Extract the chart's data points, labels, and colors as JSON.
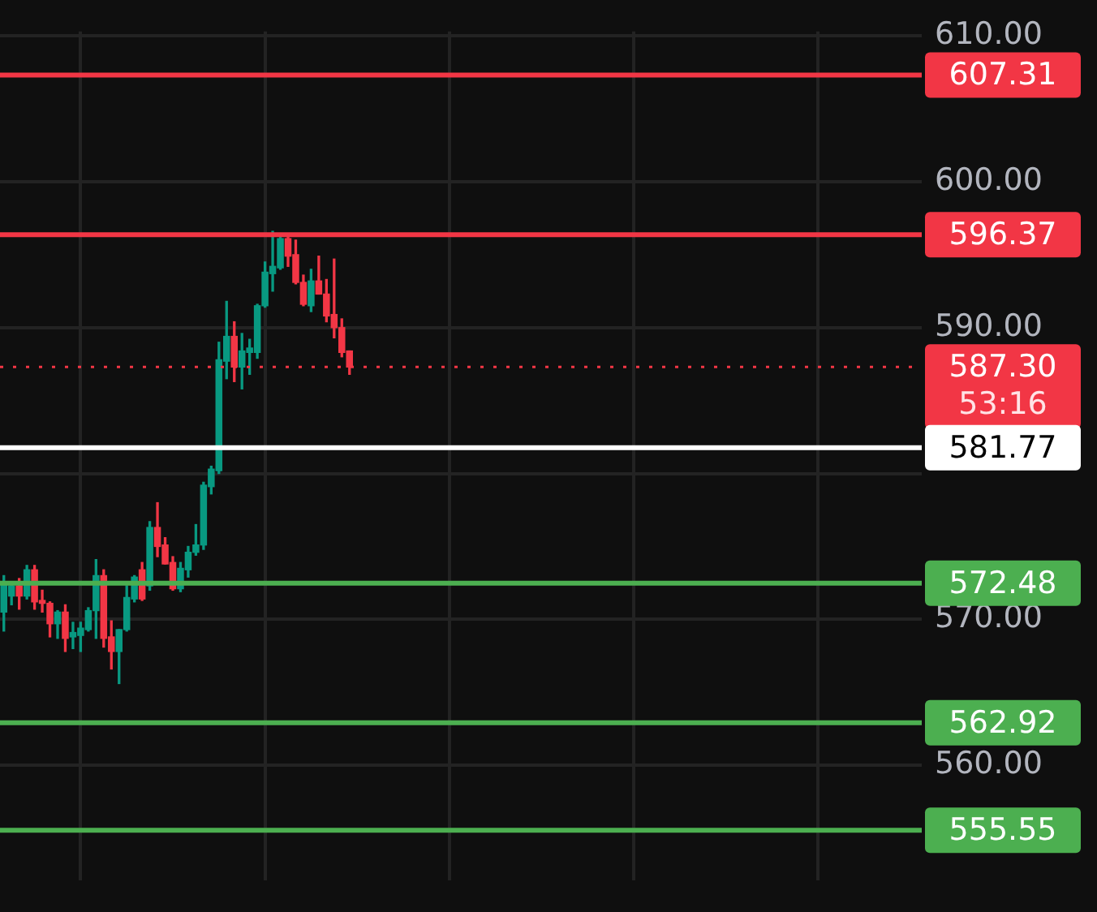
{
  "chart_data": {
    "type": "candlestick",
    "categories": [
      null,
      null,
      null,
      null,
      null,
      null,
      null,
      null,
      null,
      null,
      null,
      null,
      null,
      null,
      null,
      null,
      null,
      null,
      null,
      null,
      null,
      null,
      null,
      null,
      null,
      null,
      null,
      null,
      null,
      null,
      null,
      null,
      null,
      null,
      null,
      null,
      null,
      null,
      null,
      null,
      null,
      null,
      null,
      null,
      null,
      null,
      null,
      null,
      null,
      null,
      null,
      null,
      null,
      null,
      null,
      null,
      null,
      null,
      null,
      null,
      null,
      null,
      null,
      null,
      null,
      null,
      null,
      null,
      null,
      null,
      null,
      null,
      null,
      null,
      null,
      null,
      null,
      null,
      null,
      null,
      null,
      null,
      null,
      null,
      null,
      null,
      null,
      null,
      null,
      null,
      null,
      null,
      null,
      null,
      null,
      null,
      null,
      null,
      null,
      null,
      null,
      null,
      null,
      null,
      null,
      null,
      null,
      null,
      null,
      null,
      null,
      null,
      null,
      null,
      null,
      null,
      null,
      null,
      null,
      null
    ],
    "ohlc": [
      [
        570.5,
        573,
        569.2,
        572.5
      ],
      [
        571.6,
        572.5,
        571,
        572.3
      ],
      [
        572.3,
        572.8,
        570.7,
        571.6
      ],
      [
        571.6,
        573.7,
        571.4,
        573.4
      ],
      [
        573.4,
        573.7,
        570.7,
        571.2
      ],
      [
        571.3,
        572,
        570.5,
        571.1
      ],
      [
        571.1,
        571.2,
        568.8,
        569.7
      ],
      [
        569.7,
        570.6,
        568.7,
        570.5
      ],
      [
        570.5,
        571,
        567.8,
        568.7
      ],
      [
        568.8,
        569.8,
        568,
        569.1
      ],
      [
        568.9,
        569.8,
        567.8,
        569.4
      ],
      [
        569.3,
        570.8,
        569.2,
        570.6
      ],
      [
        570.6,
        574.1,
        568.7,
        573
      ],
      [
        573,
        573.4,
        568.1,
        568.7
      ],
      [
        568.8,
        569.9,
        566.6,
        567.8
      ],
      [
        567.8,
        569.3,
        565.6,
        569.3
      ],
      [
        569.3,
        572.3,
        569.2,
        571.5
      ],
      [
        571.4,
        573,
        571.2,
        572.9
      ],
      [
        573.4,
        573.9,
        571.3,
        571.4
      ],
      [
        572.3,
        576.7,
        572,
        576.3
      ],
      [
        576.3,
        578,
        574.3,
        575
      ],
      [
        575.1,
        575.6,
        573.8,
        573.8
      ],
      [
        573.9,
        574.3,
        572,
        572.1
      ],
      [
        572.1,
        573.9,
        571.9,
        573.5
      ],
      [
        573.4,
        575,
        572.9,
        574.6
      ],
      [
        574.6,
        576.5,
        574.4,
        575.1
      ],
      [
        575.1,
        579.4,
        574.8,
        579.2
      ],
      [
        579.1,
        580.5,
        578.6,
        580.3
      ],
      [
        580.2,
        589,
        580,
        587.8
      ],
      [
        587.7,
        591.8,
        586.5,
        589.4
      ],
      [
        589.4,
        590.4,
        586.3,
        587.3
      ],
      [
        587.3,
        589.6,
        585.8,
        588.4
      ],
      [
        588.3,
        589.2,
        586.8,
        588.6
      ],
      [
        588.3,
        591.6,
        587.9,
        591.5
      ],
      [
        591.5,
        594.5,
        591.4,
        593.8
      ],
      [
        593.7,
        596.6,
        592.5,
        594.2
      ],
      [
        594.1,
        596.2,
        594,
        596.1
      ],
      [
        596.1,
        596.4,
        594.2,
        594.9
      ],
      [
        595,
        596,
        593,
        593.1
      ],
      [
        593.1,
        593.6,
        591.5,
        591.6
      ],
      [
        591.5,
        594,
        591.1,
        593.2
      ],
      [
        593.2,
        594.9,
        592.3,
        592.3
      ],
      [
        592.3,
        593.3,
        590.4,
        590.8
      ],
      [
        590.9,
        594.7,
        589.3,
        590
      ],
      [
        590,
        590.6,
        588,
        588.3
      ],
      [
        588.4,
        588.4,
        586.8,
        587.3
      ],
      null,
      null,
      null,
      null,
      null,
      null,
      null,
      null,
      null,
      null,
      null,
      null,
      null,
      null,
      null,
      null,
      null,
      null,
      null,
      null,
      null,
      null,
      null,
      null,
      null,
      null,
      null,
      null,
      null,
      null,
      null,
      null,
      null,
      null,
      null,
      null,
      null,
      null,
      null,
      null,
      null,
      null,
      null,
      null,
      null,
      null,
      null,
      null,
      null,
      null,
      null,
      null,
      null,
      null,
      null,
      null,
      null,
      null,
      null,
      null,
      null,
      null,
      null,
      null,
      null,
      null,
      null,
      null,
      null,
      null,
      null,
      null,
      null,
      null
    ],
    "colors": [
      "#089981",
      "#089981",
      "#f23645",
      "#089981",
      "#f23645",
      "#f23645",
      "#f23645",
      "#089981",
      "#f23645",
      "#089981",
      "#089981",
      "#089981",
      "#089981",
      "#f23645",
      "#f23645",
      "#089981",
      "#089981",
      "#089981",
      "#f23645",
      "#089981",
      "#f23645",
      "#f23645",
      "#f23645",
      "#089981",
      "#089981",
      "#089981",
      "#089981",
      "#089981",
      "#089981",
      "#089981",
      "#f23645",
      "#089981",
      "#089981",
      "#089981",
      "#089981",
      "#089981",
      "#089981",
      "#f23645",
      "#f23645",
      "#f23645",
      "#089981",
      "#f23645",
      "#f23645",
      "#f23645",
      "#f23645",
      "#f23645",
      null,
      null,
      null,
      null,
      null,
      null,
      null,
      null,
      null,
      null,
      null,
      null,
      null,
      null,
      null,
      null,
      null,
      null,
      null,
      null,
      null,
      null,
      null,
      null,
      null,
      null,
      null,
      null,
      null,
      null,
      null,
      null,
      null,
      null,
      null,
      null,
      null,
      null,
      null,
      null,
      null,
      null,
      null,
      null,
      null,
      null,
      null,
      null,
      null,
      null,
      null,
      null,
      null,
      null,
      null,
      null,
      null,
      null,
      null,
      null,
      null,
      null,
      null,
      null,
      null,
      null,
      null,
      null,
      null,
      null,
      null,
      null,
      null,
      null
    ],
    "ylim": [
      552.1,
      610.3
    ],
    "yticks": [
      {
        "value": 560,
        "label": "560.00"
      },
      {
        "value": 570,
        "label": "570.00"
      },
      {
        "value": 580,
        "label": null
      },
      {
        "value": 590,
        "label": "590.00"
      },
      {
        "value": 600,
        "label": "600.00"
      },
      {
        "value": 610,
        "label": "610.00"
      }
    ],
    "grid": true,
    "ref_lines": [
      {
        "axis": "y",
        "value": 607.31,
        "label": "607.31",
        "color": "#f23645"
      },
      {
        "axis": "y",
        "value": 596.37,
        "label": "596.37",
        "color": "#f23645"
      },
      {
        "axis": "y",
        "value": 587.3,
        "label": "587.30",
        "color": "#f23645",
        "line_style": "dotted"
      },
      {
        "axis": "y",
        "value": 581.77,
        "label": "581.77",
        "color": "#ffffff"
      },
      {
        "axis": "y",
        "value": 572.48,
        "label": "572.48",
        "color": "#4caf50"
      },
      {
        "axis": "y",
        "value": 562.92,
        "label": "562.92",
        "color": "#4caf50"
      },
      {
        "axis": "y",
        "value": 555.55,
        "label": "555.55",
        "color": "#4caf50"
      }
    ],
    "annotations": [
      "53:16"
    ]
  }
}
